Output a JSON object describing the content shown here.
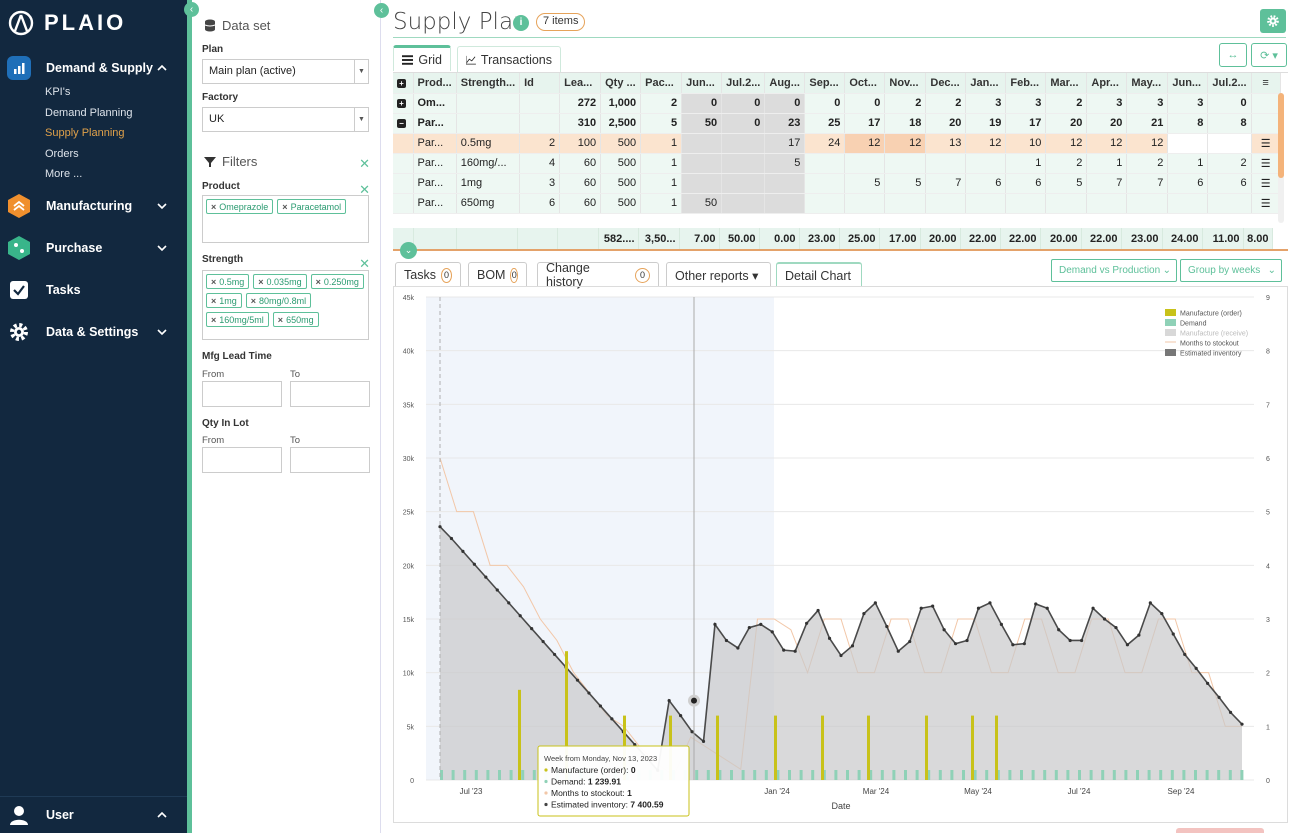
{
  "brand": {
    "name": "PLAIO",
    "accent": "#5ec09a",
    "nav_bg": "#12283f",
    "orange": "#e6a35a"
  },
  "nav": {
    "groups": [
      {
        "label": "Demand & Supply",
        "icon": "chart-bars-icon",
        "expanded": true,
        "items": [
          "KPI's",
          "Demand Planning",
          "Supply Planning",
          "Orders",
          "More ..."
        ],
        "active_item": "Supply Planning"
      },
      {
        "label": "Manufacturing",
        "icon": "factory-icon",
        "expanded": false
      },
      {
        "label": "Purchase",
        "icon": "purchase-icon",
        "expanded": false
      },
      {
        "label": "Tasks",
        "icon": "checkbox-icon"
      },
      {
        "label": "Data & Settings",
        "icon": "gear-icon",
        "expanded": false
      }
    ],
    "user_label": "User"
  },
  "filters": {
    "dataset_title": "Data set",
    "plan_label": "Plan",
    "plan_value": "Main plan (active)",
    "factory_label": "Factory",
    "factory_value": "UK",
    "filters_title": "Filters",
    "product_label": "Product",
    "product_chips": [
      "Omeprazole",
      "Paracetamol"
    ],
    "strength_label": "Strength",
    "strength_chips": [
      "0.5mg",
      "0.035mg",
      "0.250mg",
      "1mg",
      "80mg/0.8ml",
      "160mg/5ml",
      "650mg"
    ],
    "mfg_label": "Mfg Lead Time",
    "qty_label": "Qty In Lot",
    "from_label": "From",
    "to_label": "To"
  },
  "page": {
    "title": "Supply Plan",
    "items_badge": "7 items",
    "tabs": [
      "Grid",
      "Transactions"
    ]
  },
  "grid": {
    "columns": [
      "Prod...",
      "Strength...",
      "Id",
      "Lea...",
      "Qty ...",
      "Pac...",
      "Jun...",
      "Jul.2...",
      "Aug...",
      "Sep...",
      "Oct...",
      "Nov...",
      "Dec...",
      "Jan...",
      "Feb...",
      "Mar...",
      "Apr...",
      "May...",
      "Jun...",
      "Jul.2..."
    ],
    "rows": [
      {
        "expander": "+",
        "prod": "Om...",
        "strength": "",
        "id": "",
        "lead": "272",
        "qty": "1,000",
        "pac": "2",
        "months": [
          "0",
          "0",
          "0",
          "0",
          "0",
          "2",
          "2",
          "3",
          "3",
          "2",
          "3",
          "3",
          "3",
          "0"
        ]
      },
      {
        "expander": "-",
        "prod": "Par...",
        "strength": "",
        "id": "",
        "lead": "310",
        "qty": "2,500",
        "pac": "5",
        "months": [
          "50",
          "0",
          "23",
          "25",
          "17",
          "18",
          "20",
          "19",
          "17",
          "20",
          "20",
          "21",
          "8",
          "8"
        ]
      },
      {
        "expander": "",
        "prod": "Par...",
        "strength": "0.5mg",
        "id": "2",
        "lead": "100",
        "qty": "500",
        "pac": "1",
        "months": [
          "",
          "",
          "17",
          "24",
          "12",
          "12",
          "13",
          "12",
          "10",
          "12",
          "12",
          "12",
          "",
          ""
        ]
      },
      {
        "expander": "",
        "prod": "Par...",
        "strength": "160mg/...",
        "id": "4",
        "lead": "60",
        "qty": "500",
        "pac": "1",
        "months": [
          "",
          "",
          "5",
          "",
          "",
          "",
          "",
          "",
          "1",
          "2",
          "1",
          "2",
          "1",
          "2"
        ]
      },
      {
        "expander": "",
        "prod": "Par...",
        "strength": "1mg",
        "id": "3",
        "lead": "60",
        "qty": "500",
        "pac": "1",
        "months": [
          "",
          "",
          "",
          "",
          "5",
          "5",
          "7",
          "6",
          "6",
          "5",
          "7",
          "7",
          "6",
          "6"
        ]
      },
      {
        "expander": "",
        "prod": "Par...",
        "strength": "650mg",
        "id": "6",
        "lead": "60",
        "qty": "500",
        "pac": "1",
        "months": [
          "50",
          "",
          "",
          "",
          "",
          "",
          "",
          "",
          "",
          "",
          "",
          "",
          "",
          ""
        ]
      }
    ],
    "totals": [
      "582....",
      "3,50...",
      "7.00",
      "50.00",
      "0.00",
      "23.00",
      "25.00",
      "17.00",
      "20.00",
      "22.00",
      "22.00",
      "20.00",
      "22.00",
      "23.00",
      "24.00",
      "11.00",
      "8.00"
    ]
  },
  "lower": {
    "tabs": [
      {
        "label": "Tasks",
        "count": "0"
      },
      {
        "label": "BOM",
        "count": "0"
      },
      {
        "label": "Change history",
        "count": "0"
      },
      {
        "label": "Other reports ▾",
        "count": ""
      },
      {
        "label": "Detail Chart",
        "count": ""
      }
    ],
    "select_view": "Demand vs Production",
    "select_group": "Group by weeks"
  },
  "chart_data": {
    "type": "area",
    "xlabel": "Date",
    "x_ticks": [
      "Jul '23",
      "Jan '24",
      "Mar '24",
      "May '24",
      "Jul '24",
      "Sep '24"
    ],
    "y_ticks_left": [
      "0",
      "5k",
      "10k",
      "15k",
      "20k",
      "25k",
      "30k",
      "35k",
      "40k",
      "45k"
    ],
    "y_ticks_right": [
      "0",
      "1",
      "2",
      "3",
      "4",
      "5",
      "6",
      "7",
      "8",
      "9"
    ],
    "ylim_left": [
      0,
      45000
    ],
    "ylim_right": [
      0,
      9
    ],
    "legend": [
      "Manufacture (order)",
      "Demand",
      "Manufacture (receive)",
      "Months to stockout",
      "Estimated inventory"
    ],
    "legend_position": "top-right",
    "series": [
      {
        "name": "Estimated inventory",
        "color": "#555555",
        "values": [
          23600,
          22500,
          21300,
          20100,
          18900,
          17700,
          16500,
          15300,
          14100,
          12900,
          11700,
          10500,
          9300,
          8100,
          6900,
          5700,
          4500,
          3300,
          2100,
          900,
          7400,
          6000,
          4500,
          3600,
          14500,
          13000,
          12300,
          14200,
          14500,
          13800,
          12100,
          12000,
          14600,
          15800,
          13200,
          11600,
          12500,
          15500,
          16500,
          14300,
          12000,
          12900,
          16000,
          16200,
          14000,
          12700,
          13000,
          16000,
          16500,
          14500,
          12600,
          12700,
          16400,
          16000,
          14000,
          13000,
          13000,
          16000,
          15000,
          14200,
          12600,
          13500,
          16500,
          15500,
          13600,
          11700,
          10400,
          9000,
          7700,
          6300,
          5200
        ]
      },
      {
        "name": "Manufacture (order)",
        "color": "#c8c21a",
        "values": [
          8400,
          12000,
          6000,
          6000,
          6000,
          6000,
          6000,
          6000,
          6000,
          6000,
          6000
        ]
      },
      {
        "name": "Months to stockout",
        "color": "#f2c7a8"
      }
    ],
    "tooltip": {
      "title": "Week from Monday, Nov 13, 2023",
      "lines": [
        {
          "label": "Manufacture (order):",
          "value": "0"
        },
        {
          "label": "Demand:",
          "value": "1 239.91"
        },
        {
          "label": "Months to stockout:",
          "value": "1"
        },
        {
          "label": "Estimated inventory:",
          "value": "7 400.59"
        }
      ]
    }
  }
}
